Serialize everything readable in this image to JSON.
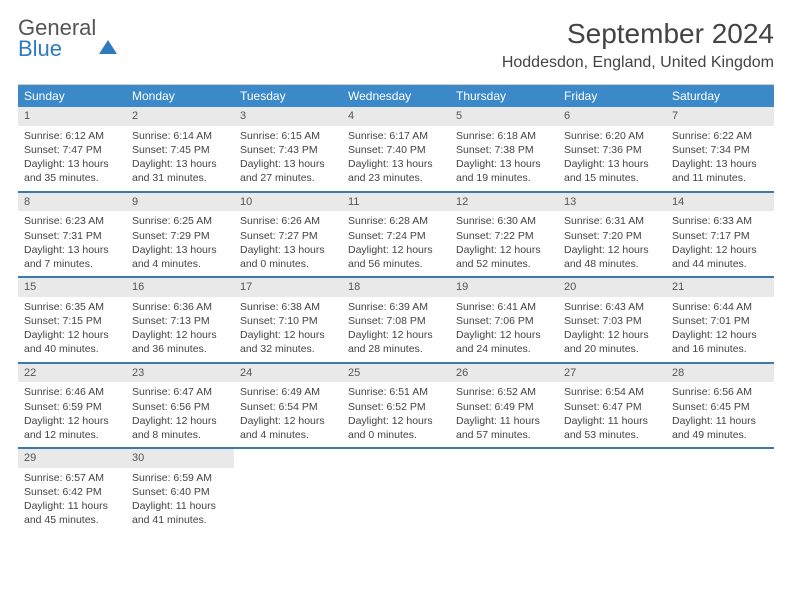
{
  "logo": {
    "line1": "General",
    "line2": "Blue"
  },
  "title": "September 2024",
  "location": "Hoddesdon, England, United Kingdom",
  "colors": {
    "header_bg": "#3b89c9",
    "header_text": "#ffffff",
    "daynum_bg": "#e9e9e9",
    "week_border": "#3b7aab",
    "logo_blue": "#2f7bbf"
  },
  "layout": {
    "columns": 7,
    "rows": 5,
    "cell_fontsize_pt": 8
  },
  "dow": [
    "Sunday",
    "Monday",
    "Tuesday",
    "Wednesday",
    "Thursday",
    "Friday",
    "Saturday"
  ],
  "days": [
    {
      "n": 1,
      "sunrise": "6:12 AM",
      "sunset": "7:47 PM",
      "daylight": "13 hours and 35 minutes."
    },
    {
      "n": 2,
      "sunrise": "6:14 AM",
      "sunset": "7:45 PM",
      "daylight": "13 hours and 31 minutes."
    },
    {
      "n": 3,
      "sunrise": "6:15 AM",
      "sunset": "7:43 PM",
      "daylight": "13 hours and 27 minutes."
    },
    {
      "n": 4,
      "sunrise": "6:17 AM",
      "sunset": "7:40 PM",
      "daylight": "13 hours and 23 minutes."
    },
    {
      "n": 5,
      "sunrise": "6:18 AM",
      "sunset": "7:38 PM",
      "daylight": "13 hours and 19 minutes."
    },
    {
      "n": 6,
      "sunrise": "6:20 AM",
      "sunset": "7:36 PM",
      "daylight": "13 hours and 15 minutes."
    },
    {
      "n": 7,
      "sunrise": "6:22 AM",
      "sunset": "7:34 PM",
      "daylight": "13 hours and 11 minutes."
    },
    {
      "n": 8,
      "sunrise": "6:23 AM",
      "sunset": "7:31 PM",
      "daylight": "13 hours and 7 minutes."
    },
    {
      "n": 9,
      "sunrise": "6:25 AM",
      "sunset": "7:29 PM",
      "daylight": "13 hours and 4 minutes."
    },
    {
      "n": 10,
      "sunrise": "6:26 AM",
      "sunset": "7:27 PM",
      "daylight": "13 hours and 0 minutes."
    },
    {
      "n": 11,
      "sunrise": "6:28 AM",
      "sunset": "7:24 PM",
      "daylight": "12 hours and 56 minutes."
    },
    {
      "n": 12,
      "sunrise": "6:30 AM",
      "sunset": "7:22 PM",
      "daylight": "12 hours and 52 minutes."
    },
    {
      "n": 13,
      "sunrise": "6:31 AM",
      "sunset": "7:20 PM",
      "daylight": "12 hours and 48 minutes."
    },
    {
      "n": 14,
      "sunrise": "6:33 AM",
      "sunset": "7:17 PM",
      "daylight": "12 hours and 44 minutes."
    },
    {
      "n": 15,
      "sunrise": "6:35 AM",
      "sunset": "7:15 PM",
      "daylight": "12 hours and 40 minutes."
    },
    {
      "n": 16,
      "sunrise": "6:36 AM",
      "sunset": "7:13 PM",
      "daylight": "12 hours and 36 minutes."
    },
    {
      "n": 17,
      "sunrise": "6:38 AM",
      "sunset": "7:10 PM",
      "daylight": "12 hours and 32 minutes."
    },
    {
      "n": 18,
      "sunrise": "6:39 AM",
      "sunset": "7:08 PM",
      "daylight": "12 hours and 28 minutes."
    },
    {
      "n": 19,
      "sunrise": "6:41 AM",
      "sunset": "7:06 PM",
      "daylight": "12 hours and 24 minutes."
    },
    {
      "n": 20,
      "sunrise": "6:43 AM",
      "sunset": "7:03 PM",
      "daylight": "12 hours and 20 minutes."
    },
    {
      "n": 21,
      "sunrise": "6:44 AM",
      "sunset": "7:01 PM",
      "daylight": "12 hours and 16 minutes."
    },
    {
      "n": 22,
      "sunrise": "6:46 AM",
      "sunset": "6:59 PM",
      "daylight": "12 hours and 12 minutes."
    },
    {
      "n": 23,
      "sunrise": "6:47 AM",
      "sunset": "6:56 PM",
      "daylight": "12 hours and 8 minutes."
    },
    {
      "n": 24,
      "sunrise": "6:49 AM",
      "sunset": "6:54 PM",
      "daylight": "12 hours and 4 minutes."
    },
    {
      "n": 25,
      "sunrise": "6:51 AM",
      "sunset": "6:52 PM",
      "daylight": "12 hours and 0 minutes."
    },
    {
      "n": 26,
      "sunrise": "6:52 AM",
      "sunset": "6:49 PM",
      "daylight": "11 hours and 57 minutes."
    },
    {
      "n": 27,
      "sunrise": "6:54 AM",
      "sunset": "6:47 PM",
      "daylight": "11 hours and 53 minutes."
    },
    {
      "n": 28,
      "sunrise": "6:56 AM",
      "sunset": "6:45 PM",
      "daylight": "11 hours and 49 minutes."
    },
    {
      "n": 29,
      "sunrise": "6:57 AM",
      "sunset": "6:42 PM",
      "daylight": "11 hours and 45 minutes."
    },
    {
      "n": 30,
      "sunrise": "6:59 AM",
      "sunset": "6:40 PM",
      "daylight": "11 hours and 41 minutes."
    }
  ],
  "labels": {
    "sunrise": "Sunrise:",
    "sunset": "Sunset:",
    "daylight": "Daylight:"
  }
}
